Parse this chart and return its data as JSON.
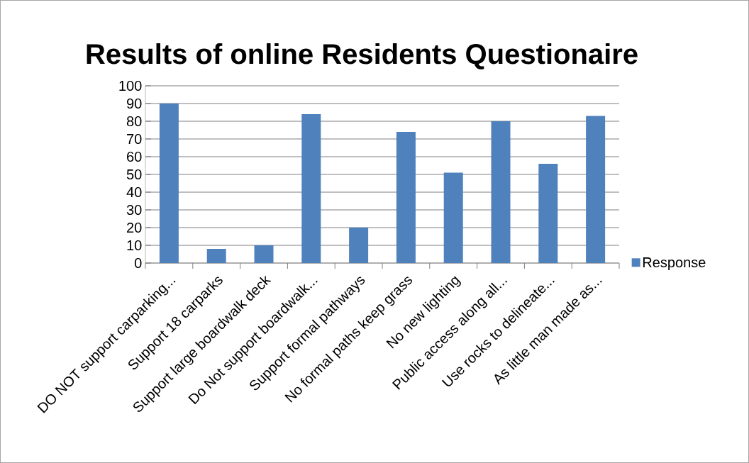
{
  "chart_data": {
    "type": "bar",
    "title": "Results of online Residents Questionaire",
    "categories": [
      "DO NOT support carparking...",
      "Support 18 carparks",
      "Support large boardwalk deck",
      "Do Not support boardwalk...",
      "Support formal pathways",
      "No formal paths keep grass",
      "No new lighting",
      "Public access along all...",
      "Use rocks to delineate...",
      "As little man made as..."
    ],
    "series": [
      {
        "name": "Response",
        "color": "#4f81bd",
        "values": [
          90,
          8,
          10,
          84,
          20,
          74,
          51,
          80,
          56,
          83
        ]
      }
    ],
    "ylim": [
      0,
      100
    ],
    "yticks": [
      0,
      10,
      20,
      30,
      40,
      50,
      60,
      70,
      80,
      90,
      100
    ],
    "grid": "y",
    "legend": "right"
  }
}
